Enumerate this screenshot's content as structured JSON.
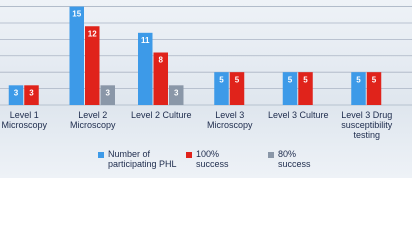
{
  "chart_data": {
    "type": "bar",
    "categories": [
      "Level 1 Microscopy",
      "Level 2 Microscopy",
      "Level 2 Culture",
      "Level 3 Microscopy",
      "Level 3 Culture",
      "Level 3 Drug susceptibility testing"
    ],
    "series": [
      {
        "name": "Number of participating PHL",
        "color": "#3d9ae8",
        "values": [
          3,
          15,
          11,
          5,
          5,
          5
        ]
      },
      {
        "name": "100% success",
        "color": "#e0231b",
        "values": [
          3,
          12,
          8,
          5,
          5,
          5
        ]
      },
      {
        "name": "80% success",
        "color": "#8a97a8",
        "values": [
          null,
          3,
          3,
          null,
          null,
          null
        ]
      }
    ],
    "ylim": [
      0,
      16
    ],
    "yticks": [
      0,
      2.5,
      5,
      7.5,
      10,
      12.5,
      15
    ],
    "grid": true
  }
}
